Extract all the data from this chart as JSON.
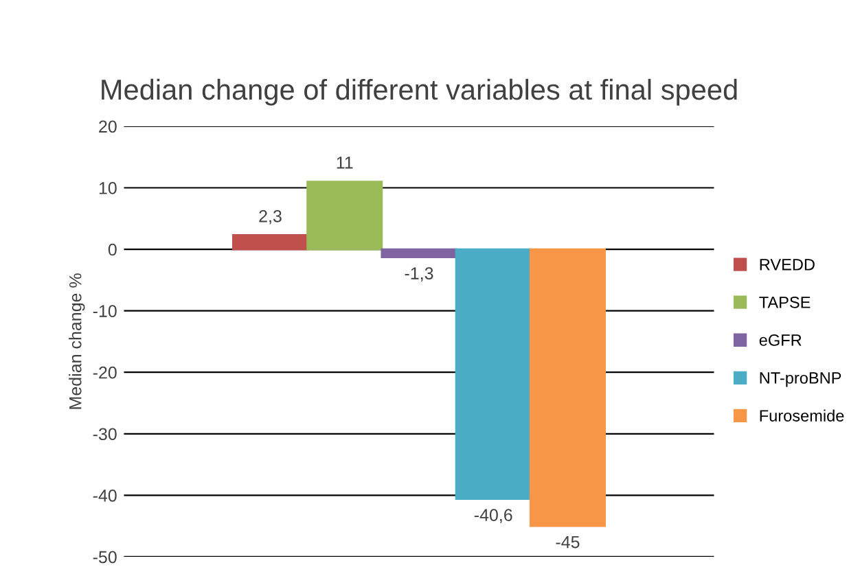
{
  "chart_data": {
    "type": "bar",
    "title": "Median change of different variables at final speed",
    "ylabel": "Median change %",
    "categories": [
      null
    ],
    "series": [
      {
        "name": "RVEDD",
        "color": "#c0504d",
        "values": [
          2.3
        ],
        "value_labels": [
          "2,3"
        ]
      },
      {
        "name": "TAPSE",
        "color": "#9bbb59",
        "values": [
          11
        ],
        "value_labels": [
          "11"
        ]
      },
      {
        "name": "eGFR",
        "color": "#8064a2",
        "values": [
          -1.3
        ],
        "value_labels": [
          "-1,3"
        ]
      },
      {
        "name": "NT-proBNP",
        "color": "#4bacc6",
        "values": [
          -40.6
        ],
        "value_labels": [
          "-40,6"
        ]
      },
      {
        "name": "Furosemide",
        "color": "#f79646",
        "values": [
          -45
        ],
        "value_labels": [
          "-45"
        ]
      }
    ],
    "ylim": [
      -50,
      20
    ],
    "yticks": [
      -50,
      -40,
      -30,
      -20,
      -10,
      0,
      10,
      20
    ],
    "grid": "y",
    "legend": "right"
  }
}
